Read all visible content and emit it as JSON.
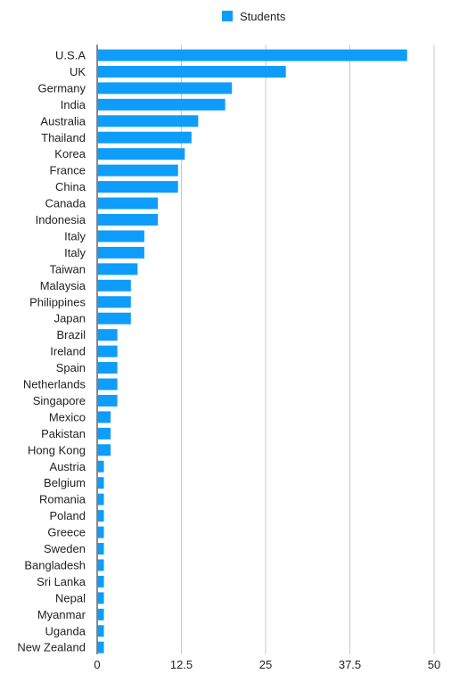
{
  "chart_data": {
    "type": "bar",
    "orientation": "horizontal",
    "title": "",
    "xlabel": "",
    "ylabel": "",
    "legend": {
      "position": "top-center",
      "entries": [
        "Students"
      ]
    },
    "grid": true,
    "xlim": [
      0,
      50
    ],
    "x_ticks": [
      "0",
      "12.5",
      "25",
      "37.5",
      "50"
    ],
    "series": [
      {
        "name": "Students",
        "color": "#0e9dfa",
        "values": [
          46,
          28,
          20,
          19,
          15,
          14,
          13,
          12,
          12,
          9,
          9,
          7,
          7,
          6,
          5,
          5,
          5,
          3,
          3,
          3,
          3,
          3,
          2,
          2,
          2,
          1,
          1,
          1,
          1,
          1,
          1,
          1,
          1,
          1,
          1,
          1,
          1
        ]
      }
    ],
    "categories": [
      "U.S.A",
      "UK",
      "Germany",
      "India",
      "Australia",
      "Thailand",
      "Korea",
      "France",
      "China",
      "Canada",
      "Indonesia",
      "Italy",
      "Italy",
      "Taiwan",
      "Malaysia",
      "Philippines",
      "Japan",
      "Brazil",
      "Ireland",
      "Spain",
      "Netherlands",
      "Singapore",
      "Mexico",
      "Pakistan",
      "Hong Kong",
      "Austria",
      "Belgium",
      "Romania",
      "Poland",
      "Greece",
      "Sweden",
      "Bangladesh",
      "Sri Lanka",
      "Nepal",
      "Myanmar",
      "Uganda",
      "New Zealand"
    ]
  }
}
